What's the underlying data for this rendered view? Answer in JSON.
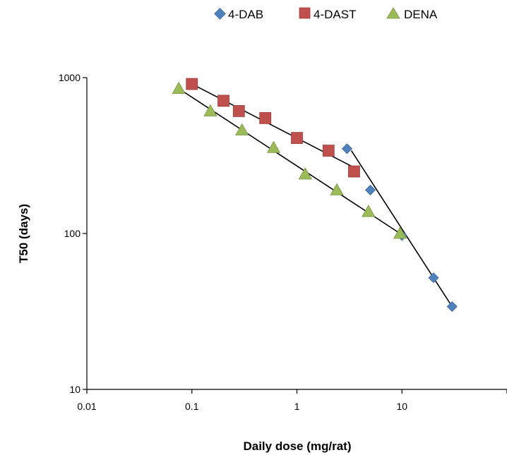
{
  "chart_data": {
    "type": "scatter",
    "xlabel": "Daily dose (mg/rat)",
    "ylabel": "T50 (days)",
    "x_scale": "log",
    "y_scale": "log",
    "xlim": [
      0.01,
      100
    ],
    "ylim": [
      10,
      1000
    ],
    "x_ticks": [
      "0.01",
      "0.1",
      "1",
      "10"
    ],
    "y_ticks": [
      "10",
      "100",
      "1000"
    ],
    "grid": false,
    "legend_position": "top",
    "series": [
      {
        "name": "4-DAB",
        "marker": "diamond",
        "color": "#4F81BD",
        "x": [
          3,
          5,
          10,
          20,
          30
        ],
        "y": [
          350,
          190,
          97,
          52,
          34
        ],
        "trend_lines": [
          [
            [
              3.3,
              340
            ],
            [
              30,
              34
            ]
          ]
        ]
      },
      {
        "name": "4-DAST",
        "marker": "square",
        "color": "#C0504D",
        "x": [
          0.1,
          0.2,
          0.28,
          0.5,
          1,
          2,
          3.5
        ],
        "y": [
          910,
          710,
          610,
          550,
          410,
          340,
          250
        ],
        "trend_lines": [
          [
            [
              0.1,
              910
            ],
            [
              3.5,
              265
            ]
          ]
        ]
      },
      {
        "name": "DENA",
        "marker": "triangle",
        "color": "#9BBB59",
        "x": [
          0.075,
          0.15,
          0.3,
          0.6,
          1.2,
          2.4,
          4.8,
          9.6
        ],
        "y": [
          850,
          610,
          460,
          355,
          240,
          190,
          138,
          100
        ],
        "trend_lines": [
          [
            [
              0.075,
              850
            ],
            [
              9.6,
              100
            ]
          ]
        ]
      }
    ]
  }
}
